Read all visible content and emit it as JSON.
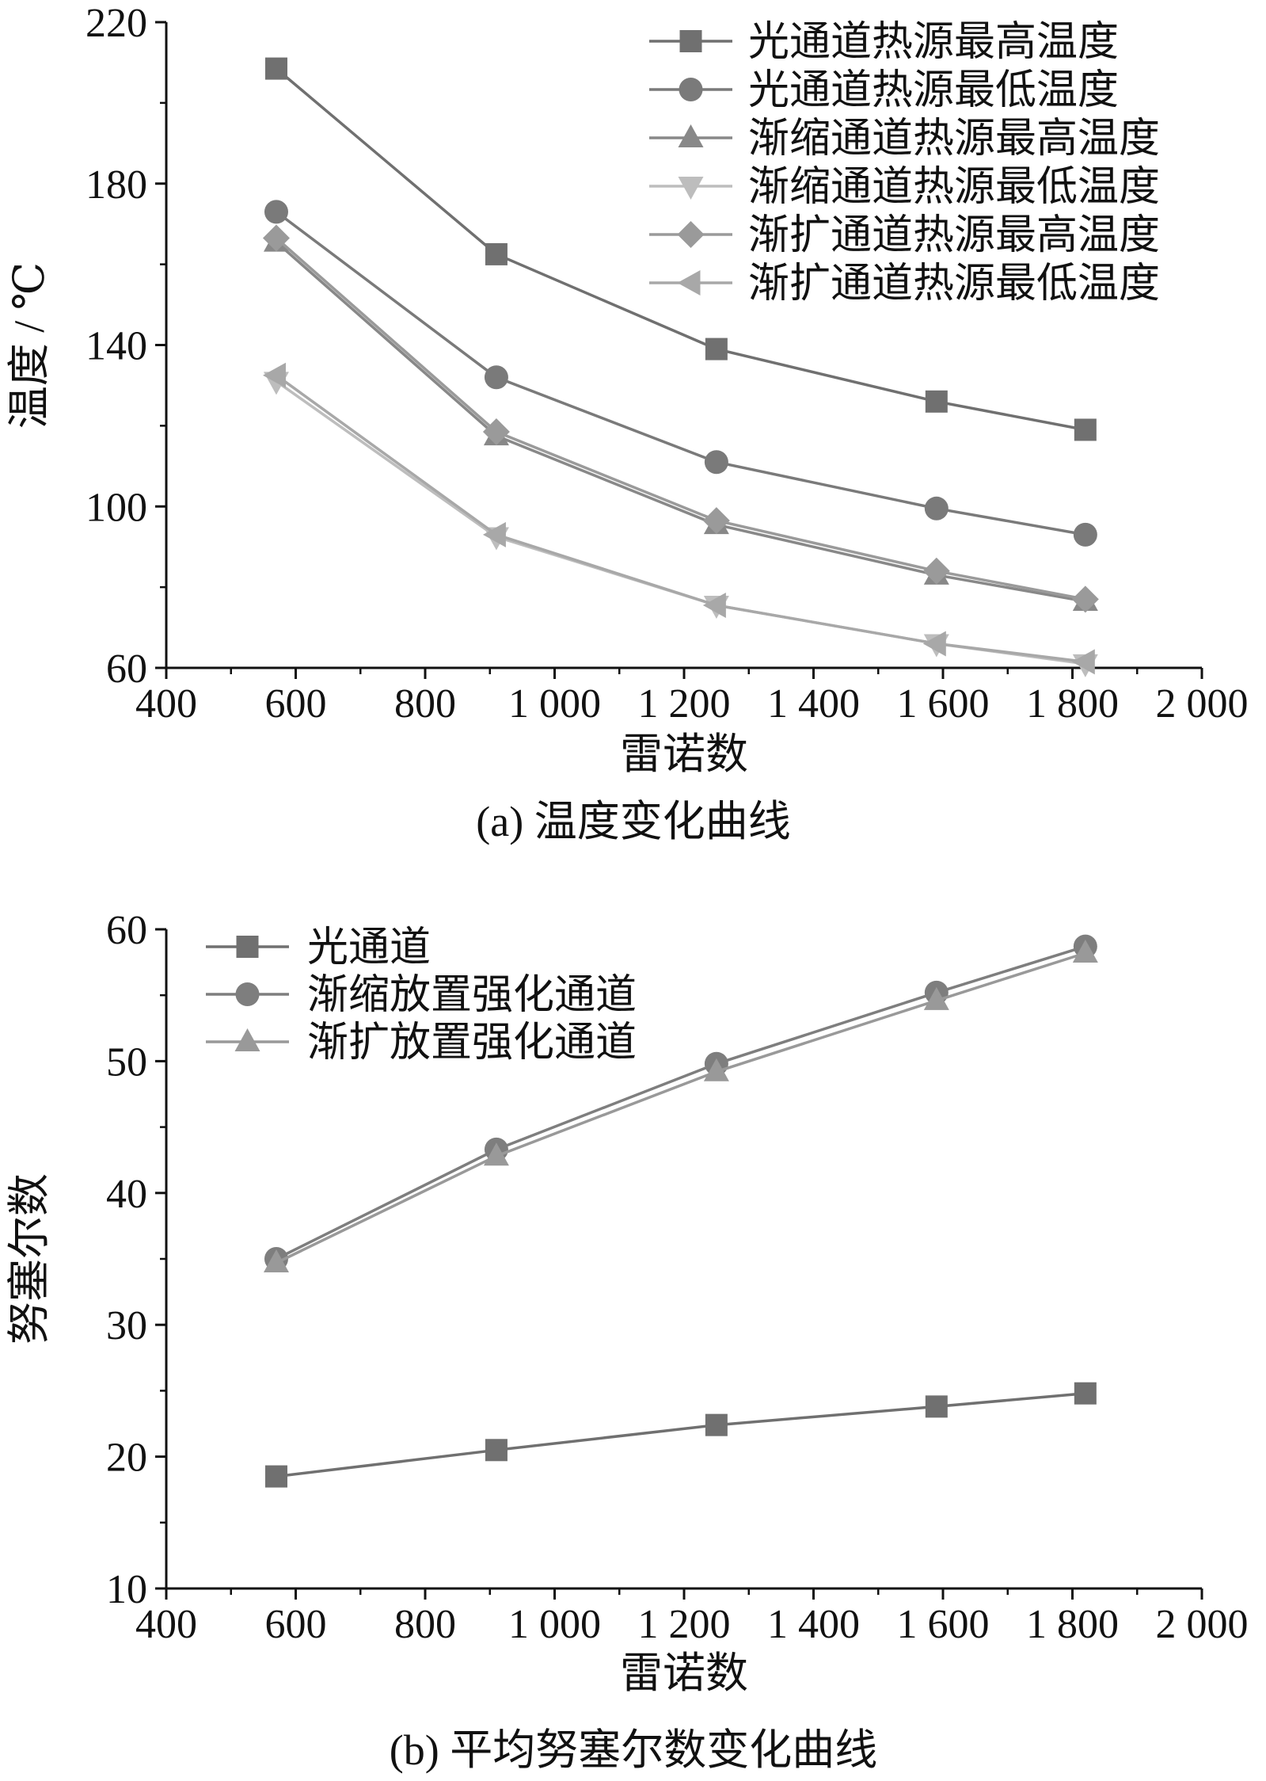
{
  "figure": {
    "caption_a": "(a)  温度变化曲线",
    "caption_b": "(b)  平均努塞尔数变化曲线"
  },
  "chart_data": [
    {
      "id": "a",
      "type": "line",
      "xlabel": "雷诺数",
      "ylabel": "温度 / ℃",
      "xlim": [
        400,
        2000
      ],
      "ylim": [
        60,
        220
      ],
      "x_ticks": [
        400,
        600,
        800,
        1000,
        1200,
        1400,
        1600,
        1800,
        2000
      ],
      "x_tick_labels": [
        "400",
        "600",
        "800",
        "1 000",
        "1 200",
        "1 400",
        "1 600",
        "1 800",
        "2 000"
      ],
      "y_ticks": [
        60,
        100,
        140,
        180,
        220
      ],
      "y_tick_labels": [
        "60",
        "100",
        "140",
        "180",
        "220"
      ],
      "legend_position": "top-right",
      "grid": false,
      "x": [
        570,
        910,
        1250,
        1590,
        1820
      ],
      "series": [
        {
          "name": "光通道热源最高温度",
          "marker": "square",
          "color": "#707070",
          "values": [
            208.5,
            162.5,
            139,
            126,
            119
          ]
        },
        {
          "name": "光通道热源最低温度",
          "marker": "circle",
          "color": "#7a7a7a",
          "values": [
            173,
            132,
            111,
            99.5,
            93
          ]
        },
        {
          "name": "渐缩通道热源最高温度",
          "marker": "triangle-up",
          "color": "#888888",
          "values": [
            165.5,
            117.5,
            95.5,
            83,
            76.5
          ]
        },
        {
          "name": "渐缩通道热源最低温度",
          "marker": "triangle-down",
          "color": "#bdbdbd",
          "values": [
            131,
            92.5,
            75.5,
            66,
            61
          ]
        },
        {
          "name": "渐扩通道热源最高温度",
          "marker": "diamond",
          "color": "#9a9a9a",
          "values": [
            166.5,
            118.5,
            96.5,
            84,
            77
          ]
        },
        {
          "name": "渐扩通道热源最低温度",
          "marker": "triangle-left",
          "color": "#a8a8a8",
          "values": [
            132.5,
            93,
            75.5,
            66,
            61.5
          ]
        }
      ]
    },
    {
      "id": "b",
      "type": "line",
      "xlabel": "雷诺数",
      "ylabel": "努塞尔数",
      "xlim": [
        400,
        2000
      ],
      "ylim": [
        10,
        60
      ],
      "x_ticks": [
        400,
        600,
        800,
        1000,
        1200,
        1400,
        1600,
        1800,
        2000
      ],
      "x_tick_labels": [
        "400",
        "600",
        "800",
        "1 000",
        "1 200",
        "1 400",
        "1 600",
        "1 800",
        "2 000"
      ],
      "y_ticks": [
        10,
        20,
        30,
        40,
        50,
        60
      ],
      "y_tick_labels": [
        "10",
        "20",
        "30",
        "40",
        "50",
        "60"
      ],
      "legend_position": "top-left",
      "grid": false,
      "x": [
        570,
        910,
        1250,
        1590,
        1820
      ],
      "series": [
        {
          "name": "光通道",
          "marker": "square",
          "color": "#707070",
          "values": [
            18.5,
            20.5,
            22.4,
            23.8,
            24.8
          ]
        },
        {
          "name": "渐缩放置强化通道",
          "marker": "circle",
          "color": "#7e7e7e",
          "values": [
            35,
            43.3,
            49.8,
            55.2,
            58.7
          ]
        },
        {
          "name": "渐扩放置强化通道",
          "marker": "triangle-up",
          "color": "#999999",
          "values": [
            34.7,
            42.8,
            49.2,
            54.6,
            58.2
          ]
        }
      ]
    }
  ]
}
